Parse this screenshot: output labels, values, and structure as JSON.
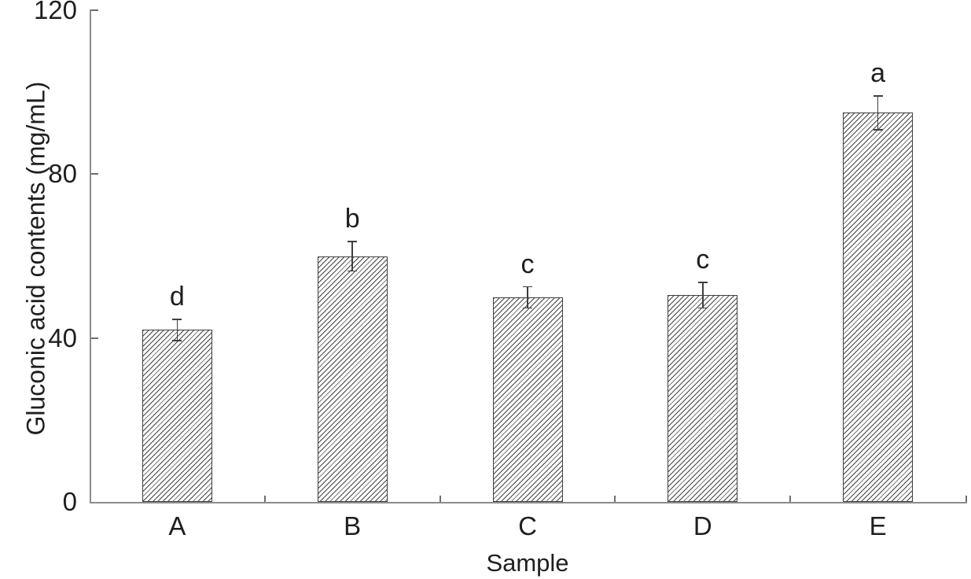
{
  "page": {
    "background_color": "#ffffff"
  },
  "chart_data": {
    "type": "bar",
    "categories": [
      "A",
      "B",
      "C",
      "D",
      "E"
    ],
    "values": [
      42,
      60,
      50,
      50.5,
      95
    ],
    "errors": [
      2.5,
      3.5,
      2.5,
      3,
      4
    ],
    "significance_labels": [
      "d",
      "b",
      "c",
      "c",
      "a"
    ],
    "title": "",
    "xlabel": "Sample",
    "ylabel": "Gluconic acid contents (mg/mL)",
    "ylim": [
      0,
      120
    ],
    "yticks": [
      0,
      40,
      80,
      120
    ],
    "ytick_labels": [
      "0",
      "40",
      "80",
      "120"
    ],
    "grid": false,
    "legend": false,
    "bar_fill": "white with black diagonal hatch (/)",
    "colors": {
      "axis": "#8c8c8c",
      "tick": "#6e6e6e",
      "text": "#1f1f1f",
      "bar_border": "#3f3f3f",
      "hatch": "#232323",
      "error_bar": "#3f3f3f"
    }
  }
}
